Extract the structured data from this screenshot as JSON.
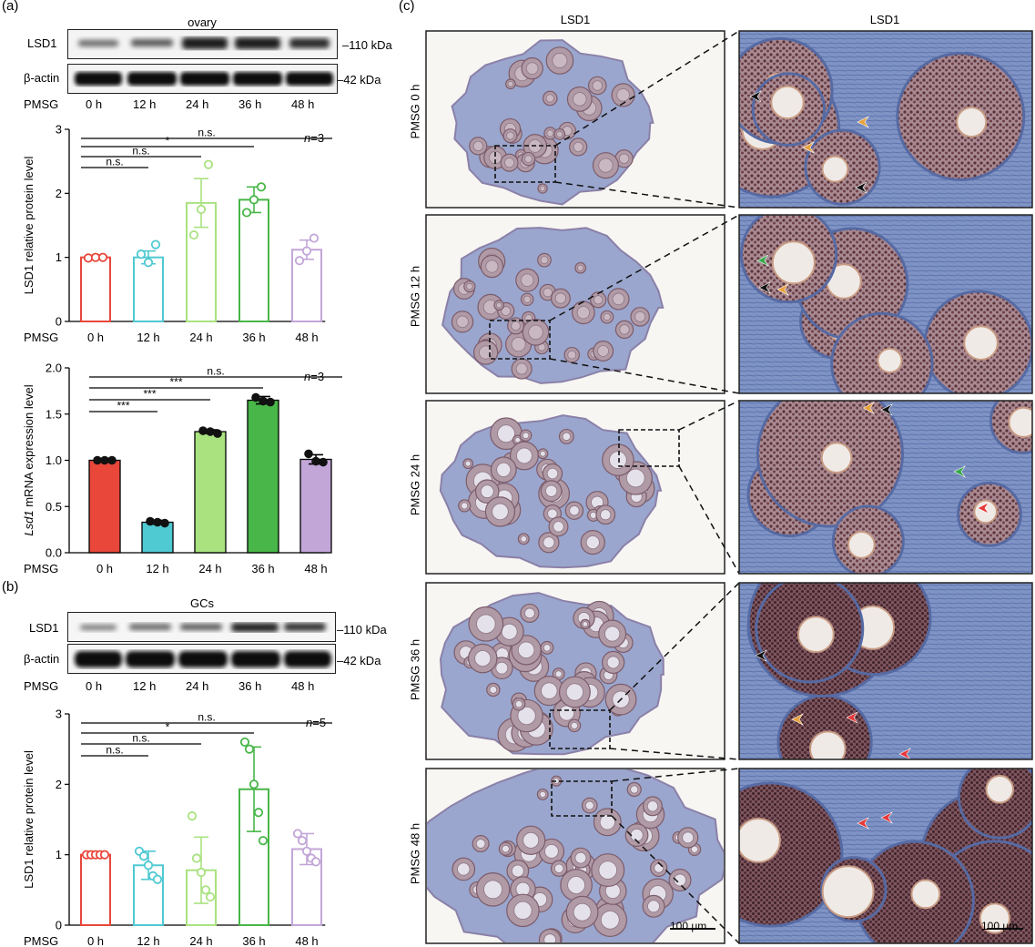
{
  "panel_a": {
    "letter": "(a)",
    "blot": {
      "title": "ovary",
      "rows": [
        {
          "label": "LSD1",
          "kda": "110 kDa"
        },
        {
          "label": "β-actin",
          "kda": "42 kDa"
        }
      ],
      "pmsg_label": "PMSG",
      "lanes": [
        "0 h",
        "12 h",
        "24 h",
        "36 h",
        "48 h"
      ]
    }
  },
  "panel_b": {
    "letter": "(b)",
    "blot": {
      "title": "GCs",
      "rows": [
        {
          "label": "LSD1",
          "kda": "110 kDa"
        },
        {
          "label": "β-actin",
          "kda": "42 kDa"
        }
      ],
      "pmsg_label": "PMSG",
      "lanes": [
        "0 h",
        "12 h",
        "24 h",
        "36 h",
        "48 h"
      ]
    }
  },
  "panel_c": {
    "letter": "(c)",
    "col_titles": [
      "LSD1",
      "LSD1"
    ],
    "row_labels": [
      "PMSG 0 h",
      "PMSG 12 h",
      "PMSG 24 h",
      "PMSG 36 h",
      "PMSG 48 h"
    ],
    "scale_bars": [
      "100 μm",
      "100 μm"
    ]
  },
  "colors": {
    "red": "#e8473a",
    "cyan": "#4fc9d2",
    "lightgreen": "#a9e27f",
    "green": "#48b648",
    "purple": "#c2a6d8",
    "tissue_blue": "#8a9cc8",
    "nuclei_brown": "#6b3f3a"
  },
  "chart_data": [
    {
      "type": "bar",
      "style": "hollow",
      "categories": [
        "0 h",
        "12 h",
        "24 h",
        "36 h",
        "48 h"
      ],
      "values": [
        1.0,
        1.0,
        1.85,
        1.9,
        1.12
      ],
      "errors": [
        0.02,
        0.1,
        0.38,
        0.2,
        0.15
      ],
      "points": [
        [
          0.99,
          1.0,
          1.0
        ],
        [
          1.05,
          0.92,
          1.2
        ],
        [
          1.35,
          1.75,
          2.45
        ],
        [
          1.7,
          1.9,
          2.1
        ],
        [
          0.95,
          1.1,
          1.3
        ]
      ],
      "xlabel_prefix": "PMSG",
      "ylabel": "LSD1 relative protein level",
      "ylim": [
        0,
        3
      ],
      "yticks": [
        0,
        1,
        2,
        3
      ],
      "n_label": "n=3",
      "significance": [
        {
          "from": 0,
          "to": 1,
          "label": "n.s."
        },
        {
          "from": 0,
          "to": 2,
          "label": "n.s."
        },
        {
          "from": 0,
          "to": 3,
          "label": "*"
        },
        {
          "from": 0,
          "to": 4,
          "label": "n.s."
        }
      ]
    },
    {
      "type": "bar",
      "style": "filled",
      "categories": [
        "0 h",
        "12 h",
        "24 h",
        "36 h",
        "48 h"
      ],
      "values": [
        1.0,
        0.33,
        1.31,
        1.65,
        1.01
      ],
      "errors": [
        0.01,
        0.02,
        0.02,
        0.04,
        0.05
      ],
      "points": [
        [
          1.0,
          1.0,
          1.0
        ],
        [
          0.34,
          0.33,
          0.32
        ],
        [
          1.32,
          1.31,
          1.29
        ],
        [
          1.68,
          1.64,
          1.63
        ],
        [
          1.07,
          0.99,
          0.98
        ]
      ],
      "xlabel_prefix": "PMSG",
      "ylabel_italic": "Lsd1",
      "ylabel": " mRNA expression level",
      "ylim": [
        0,
        2.0
      ],
      "yticks": [
        0.0,
        0.5,
        1.0,
        1.5,
        2.0
      ],
      "n_label": "n=3",
      "significance": [
        {
          "from": 0,
          "to": 1,
          "label": "***"
        },
        {
          "from": 0,
          "to": 2,
          "label": "***"
        },
        {
          "from": 0,
          "to": 3,
          "label": "***"
        },
        {
          "from": 0,
          "to": 4,
          "label": "n.s."
        }
      ]
    },
    {
      "type": "bar",
      "style": "hollow",
      "categories": [
        "0 h",
        "12 h",
        "24 h",
        "36 h",
        "48 h"
      ],
      "values": [
        1.0,
        0.85,
        0.78,
        1.93,
        1.08
      ],
      "errors": [
        0.02,
        0.2,
        0.47,
        0.6,
        0.22
      ],
      "points": [
        [
          1.0,
          1.0,
          1.0,
          1.0,
          1.0
        ],
        [
          1.05,
          0.98,
          0.85,
          0.7,
          0.65
        ],
        [
          1.55,
          0.95,
          0.75,
          0.5,
          0.4
        ],
        [
          2.6,
          2.5,
          2.0,
          1.6,
          1.2
        ],
        [
          1.3,
          1.2,
          1.05,
          0.95,
          0.9
        ]
      ],
      "xlabel_prefix": "PMSG",
      "ylabel": "LSD1 relative protein level",
      "ylim": [
        0,
        3
      ],
      "yticks": [
        0,
        1,
        2,
        3
      ],
      "n_label": "n=5",
      "significance": [
        {
          "from": 0,
          "to": 1,
          "label": "n.s."
        },
        {
          "from": 0,
          "to": 2,
          "label": "n.s."
        },
        {
          "from": 0,
          "to": 3,
          "label": "*"
        },
        {
          "from": 0,
          "to": 4,
          "label": "n.s."
        }
      ]
    }
  ]
}
